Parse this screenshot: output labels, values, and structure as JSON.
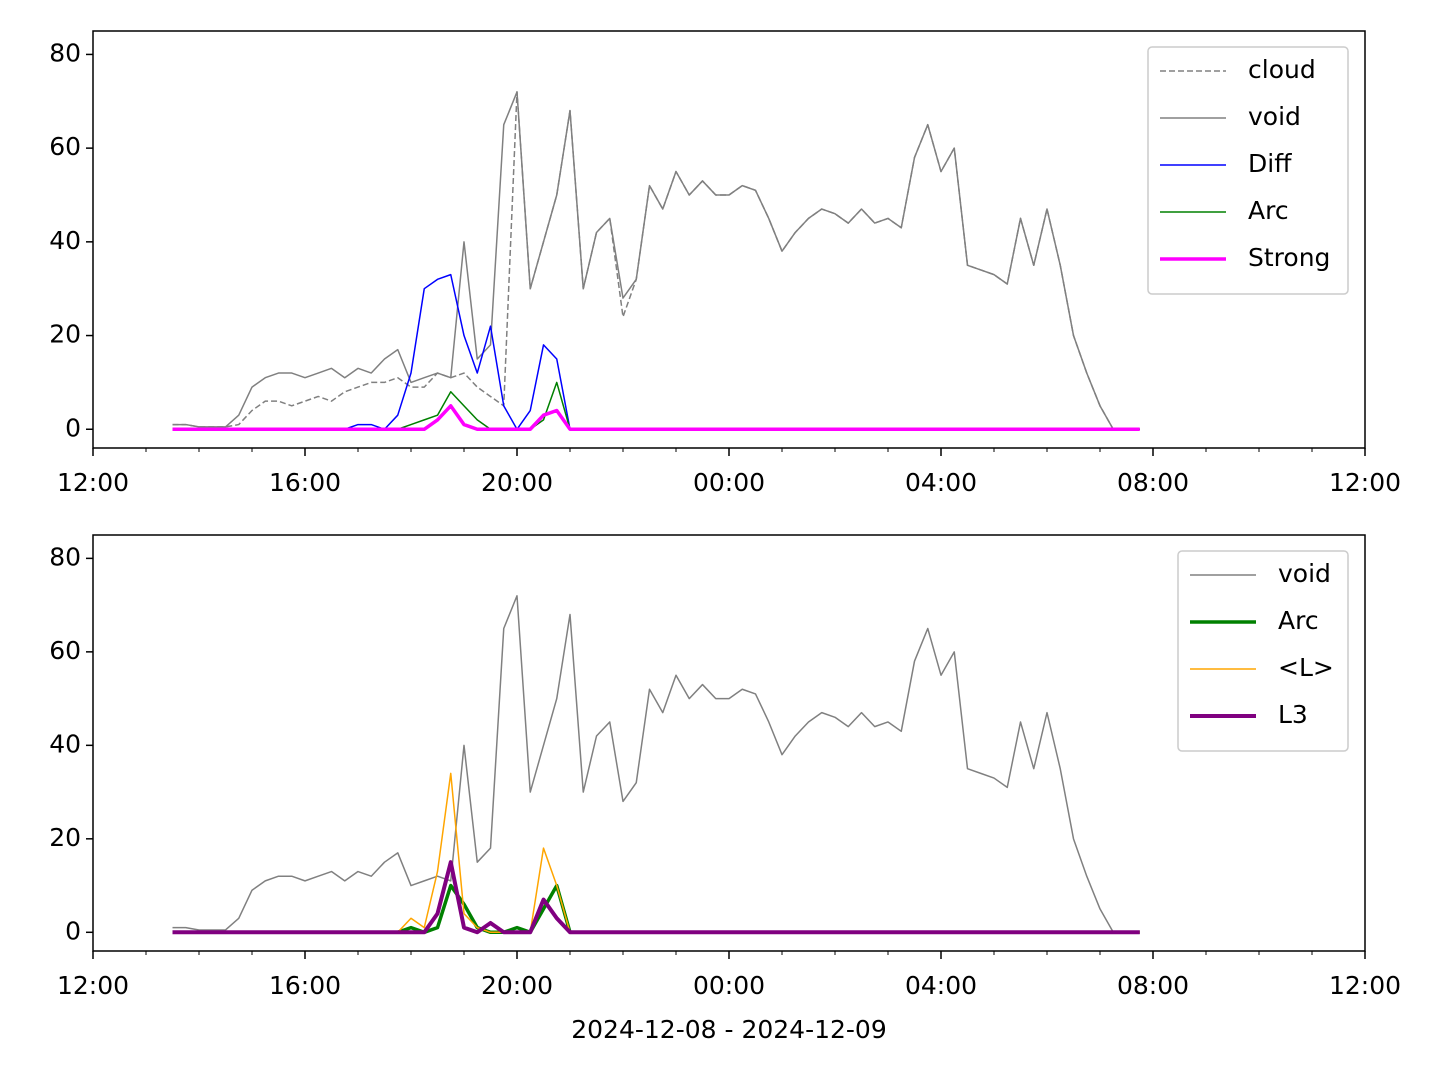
{
  "chart_data": [
    {
      "type": "line",
      "x": [
        "13:30",
        "13:45",
        "14:00",
        "14:15",
        "14:30",
        "14:45",
        "15:00",
        "15:15",
        "15:30",
        "15:45",
        "16:00",
        "16:15",
        "16:30",
        "16:45",
        "17:00",
        "17:15",
        "17:30",
        "17:45",
        "18:00",
        "18:15",
        "18:30",
        "18:45",
        "19:00",
        "19:15",
        "19:30",
        "19:45",
        "20:00",
        "20:15",
        "20:30",
        "20:45",
        "21:00",
        "21:15",
        "21:30",
        "21:45",
        "22:00",
        "22:15",
        "22:30",
        "22:45",
        "23:00",
        "23:15",
        "23:30",
        "23:45",
        "00:00",
        "00:15",
        "00:30",
        "00:45",
        "01:00",
        "01:15",
        "01:30",
        "01:45",
        "02:00",
        "02:15",
        "02:30",
        "02:45",
        "03:00",
        "03:15",
        "03:30",
        "03:45",
        "04:00",
        "04:15",
        "04:30",
        "04:45",
        "05:00",
        "05:15",
        "05:30",
        "05:45",
        "06:00",
        "06:15",
        "06:30",
        "06:45",
        "07:00",
        "07:15",
        "07:30",
        "07:45"
      ],
      "series": [
        {
          "name": "cloud",
          "color": "#808080",
          "linestyle": "dashed",
          "linewidth": 1.5,
          "values": [
            1,
            1,
            0.5,
            0.5,
            0.5,
            1,
            4,
            6,
            6,
            5,
            6,
            7,
            6,
            8,
            9,
            10,
            10,
            11,
            9,
            9,
            12,
            11,
            12,
            9,
            7,
            5,
            72,
            30,
            40,
            50,
            68,
            30,
            42,
            45,
            24,
            32,
            52,
            47,
            55,
            50,
            53,
            50,
            50,
            52,
            51,
            45,
            38,
            42,
            45,
            47,
            46,
            44,
            47,
            44,
            45,
            43,
            58,
            65,
            55,
            60,
            35,
            34,
            33,
            31,
            45,
            35,
            47,
            35,
            20,
            12,
            5,
            0,
            0,
            0
          ]
        },
        {
          "name": "void",
          "color": "#808080",
          "linestyle": "solid",
          "linewidth": 1.5,
          "values": [
            1,
            1,
            0.5,
            0.5,
            0.5,
            3,
            9,
            11,
            12,
            12,
            11,
            12,
            13,
            11,
            13,
            12,
            15,
            17,
            10,
            11,
            12,
            11,
            40,
            15,
            18,
            65,
            72,
            30,
            40,
            50,
            68,
            30,
            42,
            45,
            28,
            32,
            52,
            47,
            55,
            50,
            53,
            50,
            50,
            52,
            51,
            45,
            38,
            42,
            45,
            47,
            46,
            44,
            47,
            44,
            45,
            43,
            58,
            65,
            55,
            60,
            35,
            34,
            33,
            31,
            45,
            35,
            47,
            35,
            20,
            12,
            5,
            0,
            0,
            0
          ]
        },
        {
          "name": "Diff",
          "color": "#0000ff",
          "linestyle": "solid",
          "linewidth": 1.5,
          "values": [
            0,
            0,
            0,
            0,
            0,
            0,
            0,
            0,
            0,
            0,
            0,
            0,
            0,
            0,
            1,
            1,
            0,
            3,
            12,
            30,
            32,
            33,
            20,
            12,
            22,
            5,
            0,
            4,
            18,
            15,
            0,
            0,
            0,
            0,
            0,
            0,
            0,
            0,
            0,
            0,
            0,
            0,
            0,
            0,
            0,
            0,
            0,
            0,
            0,
            0,
            0,
            0,
            0,
            0,
            0,
            0,
            0,
            0,
            0,
            0,
            0,
            0,
            0,
            0,
            0,
            0,
            0,
            0,
            0,
            0,
            0,
            0,
            0,
            0
          ]
        },
        {
          "name": "Arc",
          "color": "#008000",
          "linestyle": "solid",
          "linewidth": 1.5,
          "values": [
            0,
            0,
            0,
            0,
            0,
            0,
            0,
            0,
            0,
            0,
            0,
            0,
            0,
            0,
            0,
            0,
            0,
            0,
            1,
            2,
            3,
            8,
            5,
            2,
            0,
            0,
            0,
            0,
            2,
            10,
            0,
            0,
            0,
            0,
            0,
            0,
            0,
            0,
            0,
            0,
            0,
            0,
            0,
            0,
            0,
            0,
            0,
            0,
            0,
            0,
            0,
            0,
            0,
            0,
            0,
            0,
            0,
            0,
            0,
            0,
            0,
            0,
            0,
            0,
            0,
            0,
            0,
            0,
            0,
            0,
            0,
            0,
            0,
            0
          ]
        },
        {
          "name": "Strong",
          "color": "#ff00ff",
          "linestyle": "solid",
          "linewidth": 3.5,
          "values": [
            0,
            0,
            0,
            0,
            0,
            0,
            0,
            0,
            0,
            0,
            0,
            0,
            0,
            0,
            0,
            0,
            0,
            0,
            0,
            0,
            2,
            5,
            1,
            0,
            0,
            0,
            0,
            0,
            3,
            4,
            0,
            0,
            0,
            0,
            0,
            0,
            0,
            0,
            0,
            0,
            0,
            0,
            0,
            0,
            0,
            0,
            0,
            0,
            0,
            0,
            0,
            0,
            0,
            0,
            0,
            0,
            0,
            0,
            0,
            0,
            0,
            0,
            0,
            0,
            0,
            0,
            0,
            0,
            0,
            0,
            0,
            0,
            0,
            0
          ]
        }
      ],
      "xlim": [
        "12:00",
        "12:00"
      ],
      "xticks": [
        "12:00",
        "16:00",
        "20:00",
        "00:00",
        "04:00",
        "08:00",
        "12:00"
      ],
      "ylim": [
        -4,
        85
      ],
      "yticks": [
        0,
        20,
        40,
        60,
        80
      ],
      "legend": "upper right"
    },
    {
      "type": "line",
      "x": [
        "13:30",
        "13:45",
        "14:00",
        "14:15",
        "14:30",
        "14:45",
        "15:00",
        "15:15",
        "15:30",
        "15:45",
        "16:00",
        "16:15",
        "16:30",
        "16:45",
        "17:00",
        "17:15",
        "17:30",
        "17:45",
        "18:00",
        "18:15",
        "18:30",
        "18:45",
        "19:00",
        "19:15",
        "19:30",
        "19:45",
        "20:00",
        "20:15",
        "20:30",
        "20:45",
        "21:00",
        "21:15",
        "21:30",
        "21:45",
        "22:00",
        "22:15",
        "22:30",
        "22:45",
        "23:00",
        "23:15",
        "23:30",
        "23:45",
        "00:00",
        "00:15",
        "00:30",
        "00:45",
        "01:00",
        "01:15",
        "01:30",
        "01:45",
        "02:00",
        "02:15",
        "02:30",
        "02:45",
        "03:00",
        "03:15",
        "03:30",
        "03:45",
        "04:00",
        "04:15",
        "04:30",
        "04:45",
        "05:00",
        "05:15",
        "05:30",
        "05:45",
        "06:00",
        "06:15",
        "06:30",
        "06:45",
        "07:00",
        "07:15",
        "07:30",
        "07:45"
      ],
      "series": [
        {
          "name": "void",
          "color": "#808080",
          "linestyle": "solid",
          "linewidth": 1.5,
          "values": [
            1,
            1,
            0.5,
            0.5,
            0.5,
            3,
            9,
            11,
            12,
            12,
            11,
            12,
            13,
            11,
            13,
            12,
            15,
            17,
            10,
            11,
            12,
            11,
            40,
            15,
            18,
            65,
            72,
            30,
            40,
            50,
            68,
            30,
            42,
            45,
            28,
            32,
            52,
            47,
            55,
            50,
            53,
            50,
            50,
            52,
            51,
            45,
            38,
            42,
            45,
            47,
            46,
            44,
            47,
            44,
            45,
            43,
            58,
            65,
            55,
            60,
            35,
            34,
            33,
            31,
            45,
            35,
            47,
            35,
            20,
            12,
            5,
            0,
            0,
            0
          ]
        },
        {
          "name": "Arc",
          "color": "#008000",
          "linestyle": "solid",
          "linewidth": 3.5,
          "values": [
            0,
            0,
            0,
            0,
            0,
            0,
            0,
            0,
            0,
            0,
            0,
            0,
            0,
            0,
            0,
            0,
            0,
            0,
            1,
            0,
            1,
            10,
            6,
            1,
            0,
            0,
            1,
            0,
            5,
            10,
            0,
            0,
            0,
            0,
            0,
            0,
            0,
            0,
            0,
            0,
            0,
            0,
            0,
            0,
            0,
            0,
            0,
            0,
            0,
            0,
            0,
            0,
            0,
            0,
            0,
            0,
            0,
            0,
            0,
            0,
            0,
            0,
            0,
            0,
            0,
            0,
            0,
            0,
            0,
            0,
            0,
            0,
            0,
            0
          ]
        },
        {
          "name": "<L>",
          "color": "#ffa500",
          "linestyle": "solid",
          "linewidth": 1.5,
          "values": [
            0,
            0,
            0,
            0,
            0,
            0,
            0,
            0,
            0,
            0,
            0,
            0,
            0,
            0,
            0,
            0,
            0,
            0,
            3,
            1,
            13,
            34,
            4,
            1,
            0,
            0,
            0,
            0,
            18,
            10,
            0,
            0,
            0,
            0,
            0,
            0,
            0,
            0,
            0,
            0,
            0,
            0,
            0,
            0,
            0,
            0,
            0,
            0,
            0,
            0,
            0,
            0,
            0,
            0,
            0,
            0,
            0,
            0,
            0,
            0,
            0,
            0,
            0,
            0,
            0,
            0,
            0,
            0,
            0,
            0,
            0,
            0,
            0,
            0
          ]
        },
        {
          "name": "L3",
          "color": "#800080",
          "linestyle": "solid",
          "linewidth": 4,
          "values": [
            0,
            0,
            0,
            0,
            0,
            0,
            0,
            0,
            0,
            0,
            0,
            0,
            0,
            0,
            0,
            0,
            0,
            0,
            0,
            0,
            4,
            15,
            1,
            0,
            2,
            0,
            0,
            0,
            7,
            3,
            0,
            0,
            0,
            0,
            0,
            0,
            0,
            0,
            0,
            0,
            0,
            0,
            0,
            0,
            0,
            0,
            0,
            0,
            0,
            0,
            0,
            0,
            0,
            0,
            0,
            0,
            0,
            0,
            0,
            0,
            0,
            0,
            0,
            0,
            0,
            0,
            0,
            0,
            0,
            0,
            0,
            0,
            0,
            0
          ]
        }
      ],
      "xlim": [
        "12:00",
        "12:00"
      ],
      "xticks": [
        "12:00",
        "16:00",
        "20:00",
        "00:00",
        "04:00",
        "08:00",
        "12:00"
      ],
      "ylim": [
        -4,
        85
      ],
      "yticks": [
        0,
        20,
        40,
        60,
        80
      ],
      "legend": "upper right",
      "x_label": "2024-12-08 - 2024-12-09"
    }
  ]
}
